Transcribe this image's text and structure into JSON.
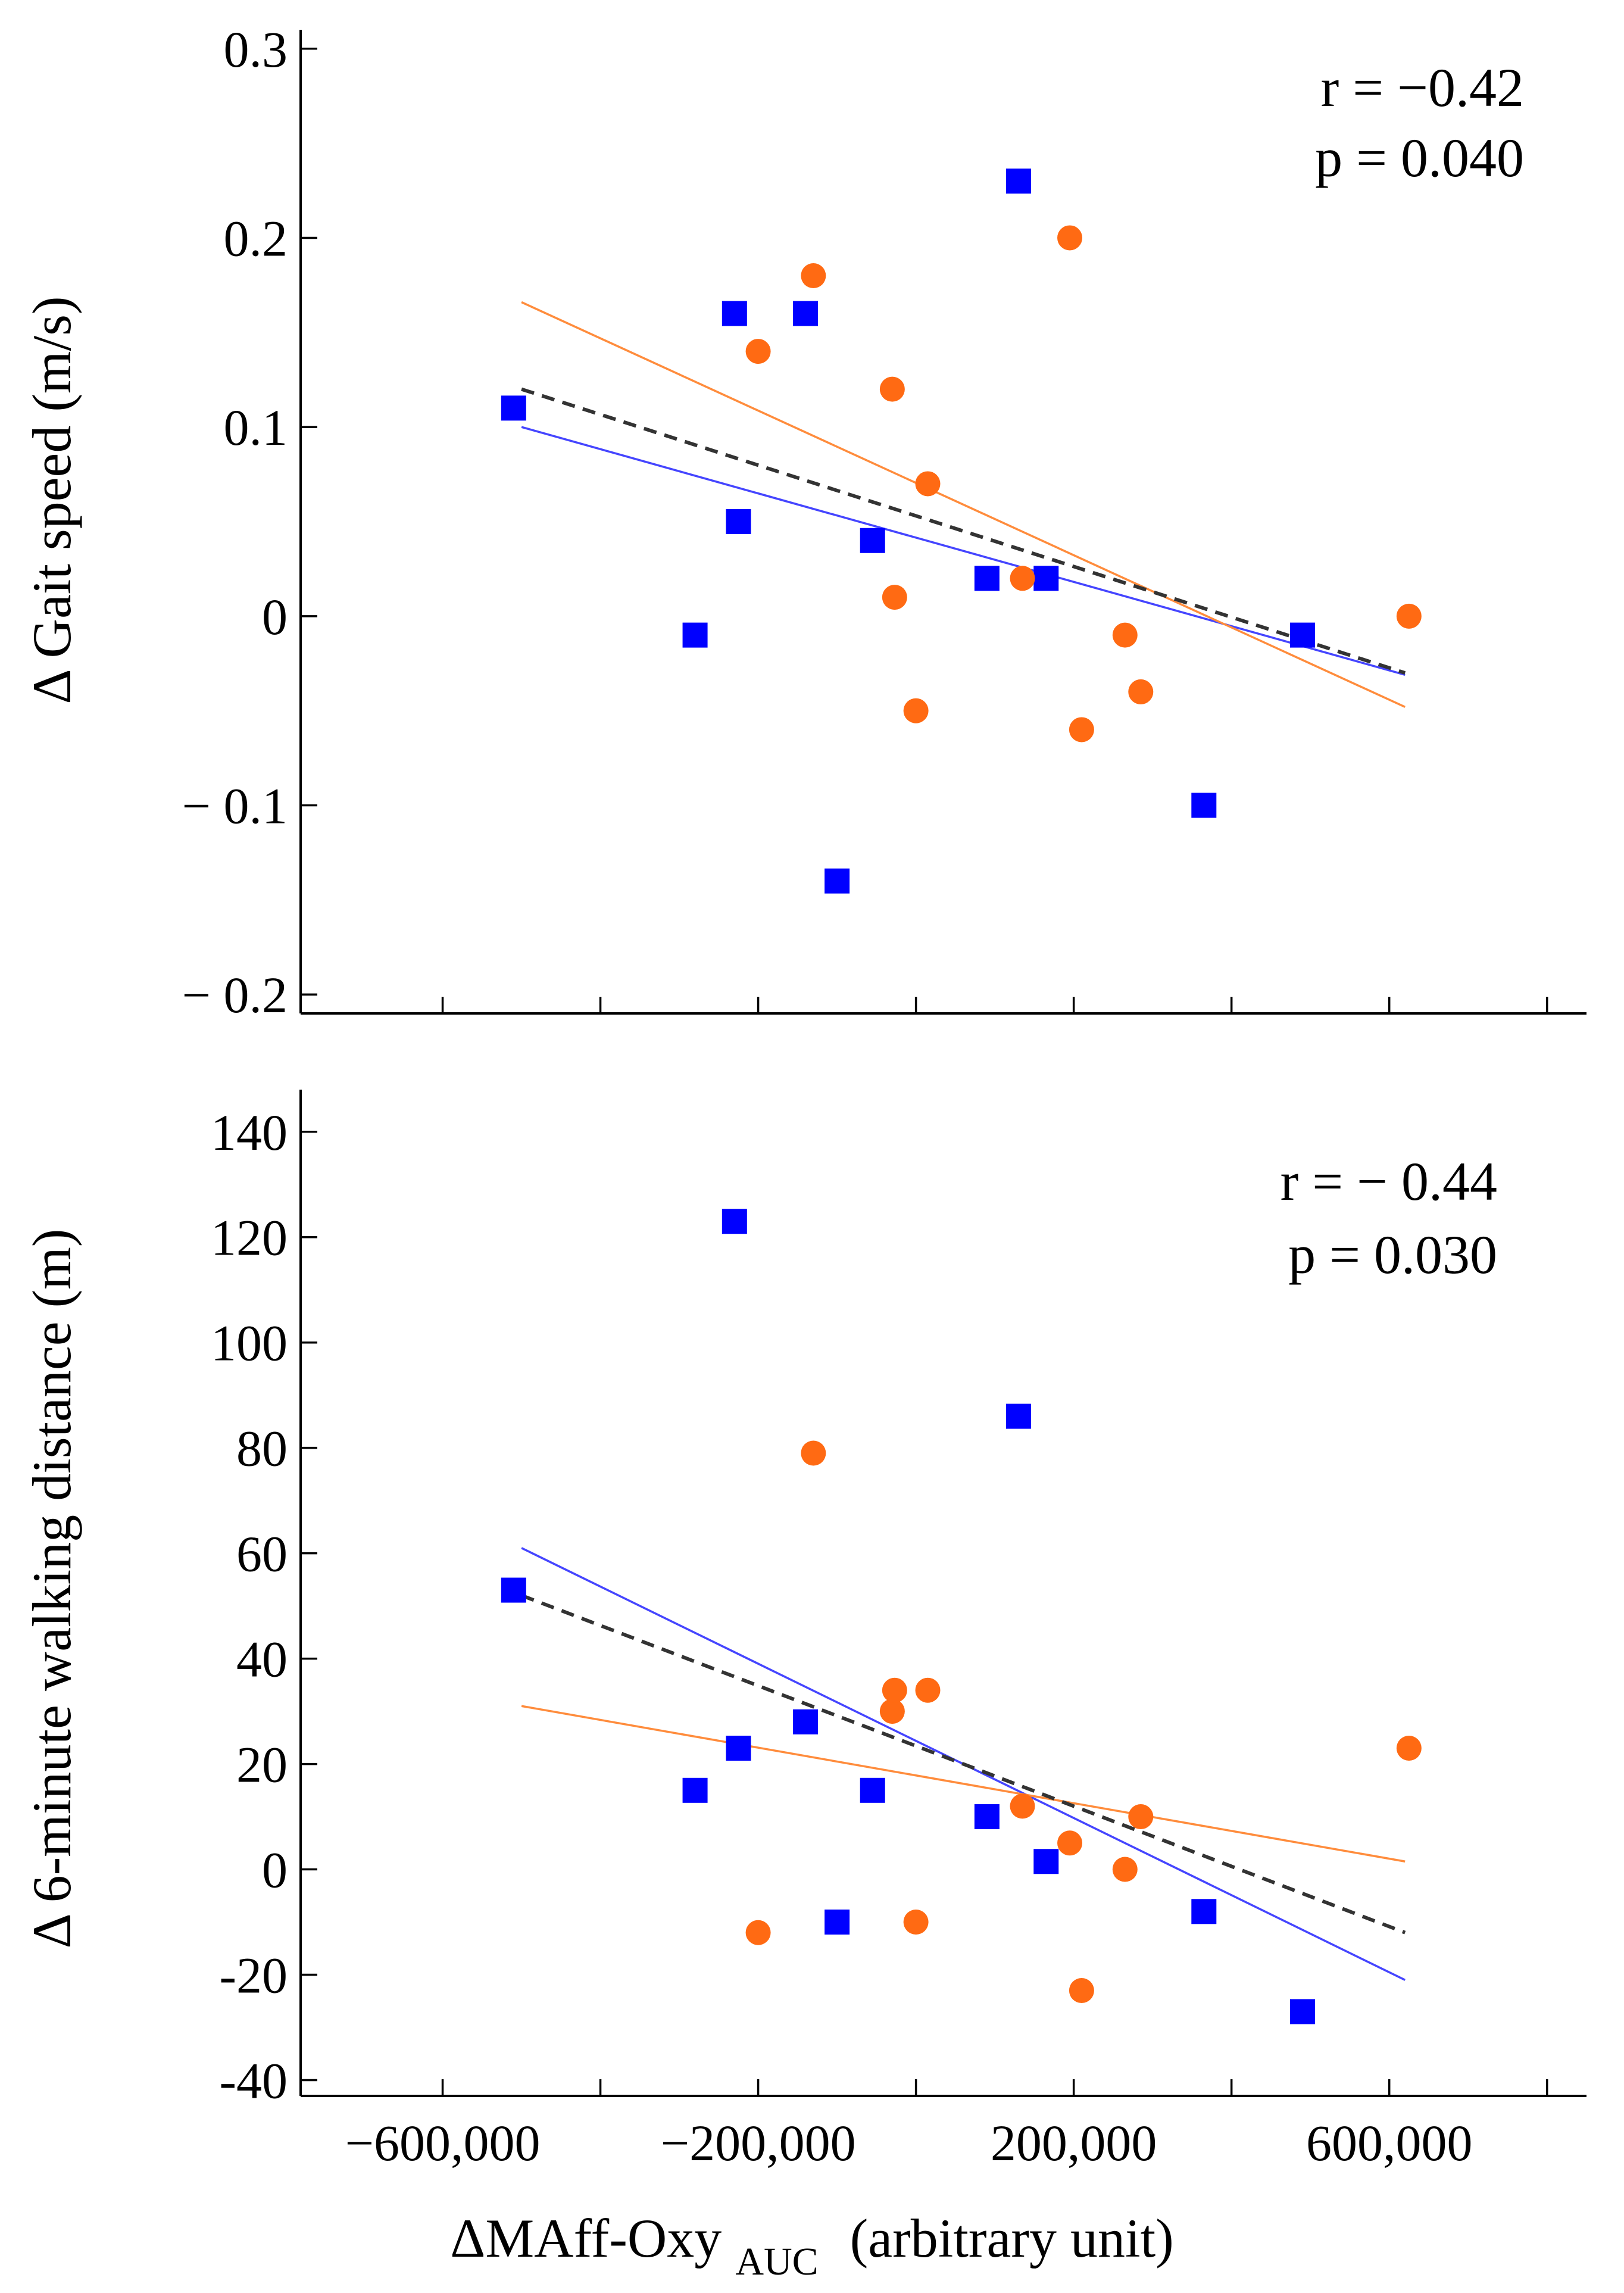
{
  "colors": {
    "group_square": "#0000ff",
    "group_circle": "#ff6a13",
    "fit_square": "#4545ff",
    "fit_circle": "#ff8c3c",
    "fit_overall": "#333333"
  },
  "x_axis": {
    "title_prefix": "ΔMAff-Oxy",
    "title_subscript": "AUC",
    "title_suffix": "(arbitrary unit)",
    "xlim": [
      -780000,
      850000
    ],
    "major_ticks": [
      -600000,
      -200000,
      200000,
      600000
    ],
    "minor_ticks": [
      -400000,
      0,
      400000,
      800000
    ],
    "tick_labels": [
      "−600,000",
      "−200,000",
      "200,000",
      "600,000"
    ]
  },
  "chart_data": [
    {
      "type": "scatter",
      "id": "gait-speed",
      "title": "",
      "xlabel": "ΔMAff-Oxy AUC (arbitrary unit)",
      "ylabel": "Δ Gait speed (m/s)",
      "ylim": [
        -0.21,
        0.31
      ],
      "yticks": [
        0.3,
        0.2,
        0.1,
        0,
        -0.1,
        -0.2
      ],
      "ytick_labels": [
        "0.3",
        "0.2",
        "0.1",
        "0",
        "− 0.1",
        "− 0.2"
      ],
      "annotation": {
        "r": "r = −0.42",
        "p": "p = 0.040"
      },
      "grid": false,
      "series": [
        {
          "name": "squares",
          "marker": "square",
          "x": [
            -510000,
            -280000,
            -230000,
            -225000,
            -140000,
            -100000,
            -55000,
            90000,
            130000,
            165000,
            365000,
            490000
          ],
          "y": [
            0.11,
            -0.01,
            0.16,
            0.05,
            0.16,
            -0.14,
            0.04,
            0.02,
            0.23,
            0.02,
            -0.1,
            -0.01
          ]
        },
        {
          "name": "circles",
          "marker": "circle",
          "x": [
            -200000,
            -130000,
            -30000,
            -27000,
            0,
            15000,
            135000,
            195000,
            210000,
            265000,
            285000,
            625000
          ],
          "y": [
            0.14,
            0.18,
            0.12,
            0.01,
            -0.05,
            0.07,
            0.02,
            0.2,
            -0.06,
            -0.01,
            -0.04,
            0.0
          ]
        }
      ],
      "fit_lines": [
        {
          "name": "squares-fit",
          "x": [
            -500000,
            620000
          ],
          "y": [
            0.1,
            -0.031
          ]
        },
        {
          "name": "circles-fit",
          "x": [
            -500000,
            620000
          ],
          "y": [
            0.166,
            -0.048
          ]
        },
        {
          "name": "overall-fit",
          "x": [
            -500000,
            620000
          ],
          "y": [
            0.12,
            -0.03
          ]
        }
      ]
    },
    {
      "type": "scatter",
      "id": "walking-distance",
      "title": "",
      "xlabel": "ΔMAff-Oxy AUC (arbitrary unit)",
      "ylabel": "Δ 6-minute walking distance (m)",
      "ylim": [
        -43,
        148
      ],
      "yticks": [
        140,
        120,
        100,
        80,
        60,
        40,
        20,
        0,
        -20,
        -40
      ],
      "ytick_labels": [
        "140",
        "120",
        "100",
        "80",
        "60",
        "40",
        "20",
        "0",
        "-20",
        "-40"
      ],
      "annotation": {
        "r": "r = − 0.44",
        "p": "p = 0.030"
      },
      "grid": false,
      "series": [
        {
          "name": "squares",
          "marker": "square",
          "x": [
            -510000,
            -280000,
            -230000,
            -225000,
            -140000,
            -100000,
            -55000,
            90000,
            130000,
            165000,
            365000,
            490000
          ],
          "y": [
            53,
            15,
            123,
            23,
            28,
            -10,
            15,
            10,
            86,
            1.5,
            -8,
            -27
          ]
        },
        {
          "name": "circles",
          "marker": "circle",
          "x": [
            -200000,
            -130000,
            -30000,
            -27000,
            0,
            15000,
            135000,
            195000,
            210000,
            265000,
            285000,
            625000
          ],
          "y": [
            -12,
            79,
            30,
            34,
            -10,
            34,
            12,
            5,
            -23,
            0,
            10,
            23
          ]
        }
      ],
      "fit_lines": [
        {
          "name": "squares-fit",
          "x": [
            -500000,
            620000
          ],
          "y": [
            61,
            -21
          ]
        },
        {
          "name": "circles-fit",
          "x": [
            -500000,
            620000
          ],
          "y": [
            31,
            1.5
          ]
        },
        {
          "name": "overall-fit",
          "x": [
            -500000,
            620000
          ],
          "y": [
            52,
            -12
          ]
        }
      ]
    }
  ]
}
